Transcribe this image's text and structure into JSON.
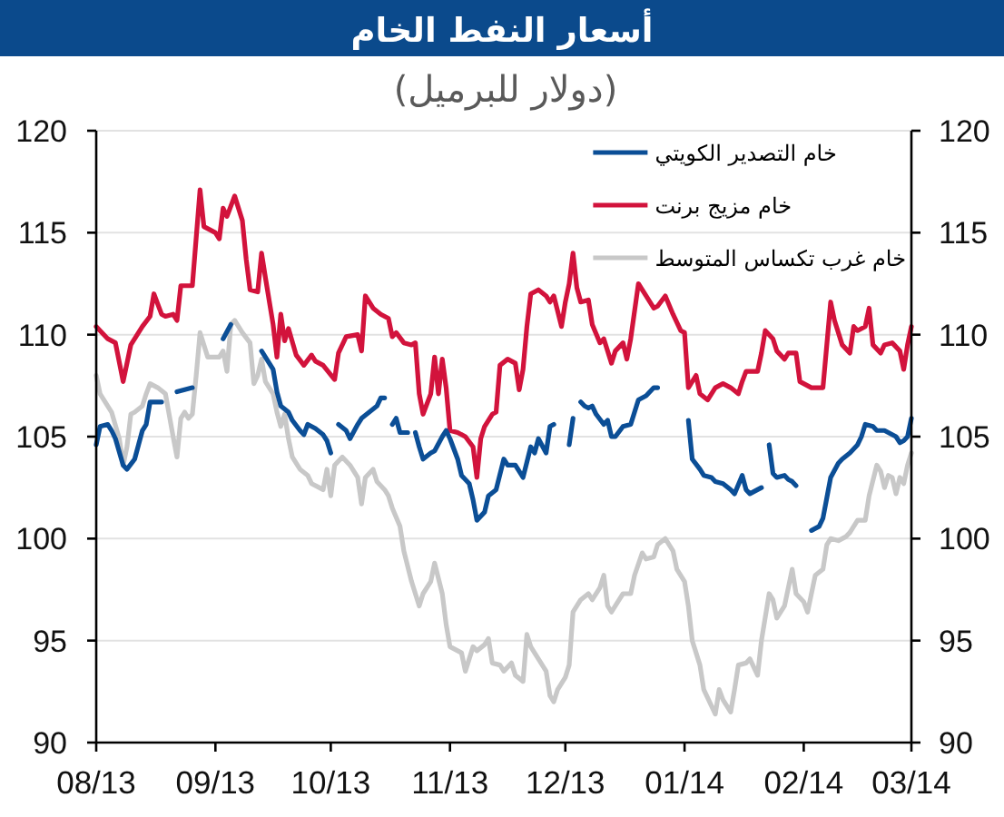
{
  "chart_data": {
    "type": "line",
    "title": "أسعار النفط الخام",
    "subtitle": "(دولار للبرميل)",
    "xlim": [
      "2013-08-01",
      "2014-03-01"
    ],
    "xticks": [
      {
        "value": "2013-08-01",
        "label": "08/13"
      },
      {
        "value": "2013-09-01",
        "label": "09/13"
      },
      {
        "value": "2013-10-01",
        "label": "10/13"
      },
      {
        "value": "2013-11-01",
        "label": "11/13"
      },
      {
        "value": "2013-12-01",
        "label": "12/13"
      },
      {
        "value": "2014-01-01",
        "label": "01/14"
      },
      {
        "value": "2014-02-01",
        "label": "02/14"
      },
      {
        "value": "2014-03-01",
        "label": "03/14"
      }
    ],
    "ylim": [
      90,
      120
    ],
    "yticks": [
      90,
      95,
      100,
      105,
      110,
      115,
      120
    ],
    "y2lim": [
      90,
      120
    ],
    "y2ticks": [
      90,
      95,
      100,
      105,
      110,
      115,
      120
    ],
    "grid": "y",
    "legend": "top right",
    "series": [
      {
        "name": "خام التصدير الكويتي",
        "color": "#0b4e96",
        "x": [
          "2013-08-01",
          "2013-08-02",
          "2013-08-04",
          "2013-08-05",
          "2013-08-06",
          "2013-08-08",
          "2013-08-09",
          "2013-08-11",
          "2013-08-12",
          "2013-08-13",
          "2013-08-14",
          "2013-08-15",
          "2013-08-18",
          "2013-08-19",
          "2013-08-22",
          "2013-08-26",
          "2013-08-28",
          "2013-09-03",
          "2013-09-05",
          "2013-09-08",
          "2013-09-13",
          "2013-09-15",
          "2013-09-16",
          "2013-09-17",
          "2013-09-18",
          "2013-09-20",
          "2013-09-21",
          "2013-09-23",
          "2013-09-24",
          "2013-09-25",
          "2013-09-27",
          "2013-09-29",
          "2013-09-30",
          "2013-10-01",
          "2013-10-02",
          "2013-10-03",
          "2013-10-05",
          "2013-10-06",
          "2013-10-08",
          "2013-10-09",
          "2013-10-11",
          "2013-10-13",
          "2013-10-14",
          "2013-10-15",
          "2013-10-16",
          "2013-10-17",
          "2013-10-18",
          "2013-10-19",
          "2013-10-21",
          "2013-10-22",
          "2013-10-23",
          "2013-10-24",
          "2013-10-25",
          "2013-10-27",
          "2013-10-28",
          "2013-10-30",
          "2013-10-31",
          "2013-11-01",
          "2013-11-03",
          "2013-11-04",
          "2013-11-06",
          "2013-11-07",
          "2013-11-08",
          "2013-11-10",
          "2013-11-11",
          "2013-11-13",
          "2013-11-15",
          "2013-11-16",
          "2013-11-18",
          "2013-11-19",
          "2013-11-20",
          "2013-11-22",
          "2013-11-23",
          "2013-11-24",
          "2013-11-26",
          "2013-11-27",
          "2013-11-28",
          "2013-11-30",
          "2013-12-02",
          "2013-12-03",
          "2013-12-04",
          "2013-12-05",
          "2013-12-06",
          "2013-12-07",
          "2013-12-08",
          "2013-12-09",
          "2013-12-11",
          "2013-12-12",
          "2013-12-13",
          "2013-12-14",
          "2013-12-16",
          "2013-12-18",
          "2013-12-19",
          "2013-12-20",
          "2013-12-22",
          "2013-12-24",
          "2013-12-25",
          "2013-12-28",
          "2014-01-02",
          "2014-01-03",
          "2014-01-05",
          "2014-01-06",
          "2014-01-08",
          "2014-01-09",
          "2014-01-11",
          "2014-01-13",
          "2014-01-14",
          "2014-01-16",
          "2014-01-17",
          "2014-01-18",
          "2014-01-20",
          "2014-01-21",
          "2014-01-22",
          "2014-01-23",
          "2014-01-24",
          "2014-01-25",
          "2014-01-27",
          "2014-01-28",
          "2014-01-29",
          "2014-01-30",
          "2014-01-31",
          "2014-02-03",
          "2014-02-05",
          "2014-02-06",
          "2014-02-07",
          "2014-02-08",
          "2014-02-10",
          "2014-02-11",
          "2014-02-13",
          "2014-02-15",
          "2014-02-16",
          "2014-02-17",
          "2014-02-19",
          "2014-02-20",
          "2014-02-22",
          "2014-02-23",
          "2014-02-25",
          "2014-02-26",
          "2014-02-27",
          "2014-02-28",
          "2014-03-01"
        ],
        "values": [
          104.6,
          105.5,
          105.6,
          105.3,
          104.9,
          103.6,
          103.4,
          103.9,
          104.6,
          105.3,
          105.6,
          106.7,
          106.7,
          null,
          107.2,
          107.4,
          null,
          109.8,
          110.5,
          null,
          109.2,
          108.6,
          108.3,
          107.2,
          106.5,
          106.2,
          105.8,
          105.3,
          105.1,
          105.6,
          105.4,
          105.1,
          104.8,
          104.2,
          null,
          105.6,
          105.3,
          104.9,
          105.6,
          105.9,
          106.2,
          106.5,
          106.9,
          106.9,
          null,
          105.6,
          105.9,
          105.2,
          105.2,
          null,
          105.2,
          104.5,
          103.9,
          104.2,
          104.3,
          105.0,
          105.3,
          104.9,
          103.9,
          103.1,
          102.7,
          101.9,
          100.9,
          101.3,
          102.1,
          102.4,
          103.9,
          103.6,
          103.6,
          103.3,
          103.0,
          104.5,
          104.2,
          104.9,
          104.2,
          105.5,
          105.6,
          null,
          104.6,
          105.9,
          null,
          106.7,
          106.5,
          106.4,
          106.5,
          106.1,
          105.6,
          105.8,
          105.0,
          105.0,
          105.5,
          105.6,
          106.2,
          106.8,
          107.0,
          107.4,
          107.4,
          null,
          105.8,
          103.9,
          103.4,
          103.1,
          103.0,
          102.8,
          102.7,
          102.4,
          102.2,
          103.1,
          102.4,
          102.2,
          102.4,
          102.5,
          null,
          104.6,
          103.2,
          103.0,
          103.1,
          102.9,
          102.8,
          102.6,
          null,
          100.4,
          100.6,
          101.0,
          102.0,
          103.0,
          103.7,
          103.9,
          104.2,
          104.6,
          105.0,
          105.6,
          105.5,
          105.3,
          105.3,
          105.2,
          105.0,
          104.7,
          104.8,
          105.0,
          105.9
        ]
      },
      {
        "name": "خام مزيج برنت",
        "color": "#d2133c",
        "x": [
          "2013-08-01",
          "2013-08-04",
          "2013-08-06",
          "2013-08-08",
          "2013-08-10",
          "2013-08-13",
          "2013-08-15",
          "2013-08-16",
          "2013-08-18",
          "2013-08-19",
          "2013-08-21",
          "2013-08-22",
          "2013-08-23",
          "2013-08-26",
          "2013-08-28",
          "2013-08-29",
          "2013-09-01",
          "2013-09-02",
          "2013-09-03",
          "2013-09-04",
          "2013-09-06",
          "2013-09-08",
          "2013-09-09",
          "2013-09-10",
          "2013-09-12",
          "2013-09-13",
          "2013-09-14",
          "2013-09-16",
          "2013-09-17",
          "2013-09-18",
          "2013-09-19",
          "2013-09-20",
          "2013-09-22",
          "2013-09-24",
          "2013-09-26",
          "2013-09-27",
          "2013-09-29",
          "2013-10-02",
          "2013-10-03",
          "2013-10-05",
          "2013-10-08",
          "2013-10-09",
          "2013-10-10",
          "2013-10-12",
          "2013-10-14",
          "2013-10-16",
          "2013-10-17",
          "2013-10-18",
          "2013-10-20",
          "2013-10-22",
          "2013-10-23",
          "2013-10-24",
          "2013-10-25",
          "2013-10-27",
          "2013-10-28",
          "2013-10-29",
          "2013-10-30",
          "2013-10-31",
          "2013-11-01",
          "2013-11-03",
          "2013-11-05",
          "2013-11-07",
          "2013-11-08",
          "2013-11-09",
          "2013-11-10",
          "2013-11-12",
          "2013-11-13",
          "2013-11-14",
          "2013-11-16",
          "2013-11-18",
          "2013-11-19",
          "2013-11-20",
          "2013-11-21",
          "2013-11-22",
          "2013-11-24",
          "2013-11-26",
          "2013-11-27",
          "2013-11-28",
          "2013-11-30",
          "2013-12-01",
          "2013-12-02",
          "2013-12-03",
          "2013-12-04",
          "2013-12-05",
          "2013-12-07",
          "2013-12-08",
          "2013-12-10",
          "2013-12-11",
          "2013-12-13",
          "2013-12-14",
          "2013-12-16",
          "2013-12-17",
          "2013-12-18",
          "2013-12-20",
          "2013-12-22",
          "2013-12-24",
          "2013-12-25",
          "2013-12-27",
          "2013-12-29",
          "2013-12-31",
          "2014-01-01",
          "2014-01-02",
          "2014-01-04",
          "2014-01-05",
          "2014-01-07",
          "2014-01-09",
          "2014-01-11",
          "2014-01-13",
          "2014-01-15",
          "2014-01-16",
          "2014-01-17",
          "2014-01-20",
          "2014-01-21",
          "2014-01-22",
          "2014-01-24",
          "2014-01-25",
          "2014-01-27",
          "2014-01-28",
          "2014-01-30",
          "2014-01-31",
          "2014-02-03",
          "2014-02-06",
          "2014-02-08",
          "2014-02-09",
          "2014-02-11",
          "2014-02-13",
          "2014-02-14",
          "2014-02-15",
          "2014-02-17",
          "2014-02-18",
          "2014-02-19",
          "2014-02-21",
          "2014-02-22",
          "2014-02-24",
          "2014-02-26",
          "2014-02-27",
          "2014-02-28",
          "2014-03-01"
        ],
        "values": [
          110.4,
          109.8,
          109.6,
          107.7,
          109.5,
          110.4,
          110.9,
          112.0,
          111.0,
          110.9,
          111.0,
          110.7,
          112.4,
          112.4,
          117.1,
          115.3,
          115.0,
          114.7,
          116.2,
          115.8,
          116.8,
          115.6,
          113.7,
          112.2,
          112.1,
          114.0,
          112.8,
          110.5,
          108.9,
          111.0,
          109.7,
          110.3,
          109.0,
          108.5,
          109.0,
          108.7,
          108.5,
          107.8,
          109.1,
          109.9,
          110.0,
          109.2,
          111.9,
          111.3,
          111.0,
          110.8,
          109.9,
          110.1,
          109.6,
          109.5,
          109.6,
          107.1,
          106.1,
          107.1,
          108.9,
          107.1,
          108.8,
          107.4,
          105.3,
          105.2,
          105.0,
          104.5,
          103.0,
          104.9,
          105.5,
          106.1,
          106.2,
          108.5,
          108.8,
          108.6,
          107.3,
          108.3,
          110.4,
          112.0,
          112.2,
          111.9,
          111.6,
          111.9,
          110.4,
          111.6,
          112.5,
          114.0,
          112.3,
          111.6,
          111.7,
          110.5,
          109.6,
          109.8,
          108.6,
          109.2,
          109.6,
          108.8,
          109.8,
          112.5,
          111.9,
          111.3,
          111.4,
          111.9,
          111.0,
          110.2,
          110.1,
          107.4,
          108.0,
          107.1,
          106.8,
          107.4,
          107.6,
          107.4,
          107.1,
          107.7,
          108.2,
          108.2,
          109.1,
          110.2,
          109.8,
          109.2,
          108.8,
          109.1,
          109.1,
          107.7,
          107.4,
          107.4,
          111.6,
          110.7,
          109.5,
          109.1,
          110.4,
          110.2,
          110.4,
          111.3,
          109.5,
          109.1,
          109.5,
          109.6,
          109.2,
          108.3,
          109.5,
          110.4
        ]
      },
      {
        "name": "خام غرب تكساس المتوسط",
        "color": "#c8c8c8",
        "x": [
          "2013-08-01",
          "2013-08-02",
          "2013-08-04",
          "2013-08-05",
          "2013-08-07",
          "2013-08-08",
          "2013-08-09",
          "2013-08-10",
          "2013-08-11",
          "2013-08-13",
          "2013-08-14",
          "2013-08-15",
          "2013-08-17",
          "2013-08-19",
          "2013-08-21",
          "2013-08-22",
          "2013-08-23",
          "2013-08-24",
          "2013-08-25",
          "2013-08-26",
          "2013-08-27",
          "2013-08-28",
          "2013-08-30",
          "2013-08-31",
          "2013-09-02",
          "2013-09-03",
          "2013-09-04",
          "2013-09-05",
          "2013-09-06",
          "2013-09-08",
          "2013-09-10",
          "2013-09-11",
          "2013-09-12",
          "2013-09-13",
          "2013-09-14",
          "2013-09-16",
          "2013-09-17",
          "2013-09-18",
          "2013-09-19",
          "2013-09-20",
          "2013-09-21",
          "2013-09-23",
          "2013-09-25",
          "2013-09-26",
          "2013-09-28",
          "2013-09-29",
          "2013-09-30",
          "2013-10-01",
          "2013-10-02",
          "2013-10-04",
          "2013-10-06",
          "2013-10-07",
          "2013-10-08",
          "2013-10-09",
          "2013-10-10",
          "2013-10-12",
          "2013-10-13",
          "2013-10-15",
          "2013-10-16",
          "2013-10-17",
          "2013-10-19",
          "2013-10-20",
          "2013-10-22",
          "2013-10-24",
          "2013-10-25",
          "2013-10-27",
          "2013-10-28",
          "2013-10-30",
          "2013-10-31",
          "2013-11-01",
          "2013-11-03",
          "2013-11-04",
          "2013-11-05",
          "2013-11-07",
          "2013-11-08",
          "2013-11-10",
          "2013-11-11",
          "2013-11-12",
          "2013-11-14",
          "2013-11-15",
          "2013-11-17",
          "2013-11-18",
          "2013-11-20",
          "2013-11-21",
          "2013-11-22",
          "2013-11-24",
          "2013-11-26",
          "2013-11-27",
          "2013-11-28",
          "2013-11-29",
          "2013-12-01",
          "2013-12-02",
          "2013-12-03",
          "2013-12-05",
          "2013-12-07",
          "2013-12-08",
          "2013-12-10",
          "2013-12-11",
          "2013-12-12",
          "2013-12-13",
          "2013-12-15",
          "2013-12-16",
          "2013-12-18",
          "2013-12-19",
          "2013-12-21",
          "2013-12-22",
          "2013-12-24",
          "2013-12-25",
          "2013-12-27",
          "2013-12-29",
          "2013-12-30",
          "2014-01-01",
          "2014-01-02",
          "2014-01-03",
          "2014-01-04",
          "2014-01-05",
          "2014-01-06",
          "2014-01-08",
          "2014-01-09",
          "2014-01-10",
          "2014-01-11",
          "2014-01-13",
          "2014-01-14",
          "2014-01-15",
          "2014-01-17",
          "2014-01-18",
          "2014-01-20",
          "2014-01-21",
          "2014-01-23",
          "2014-01-24",
          "2014-01-25",
          "2014-01-27",
          "2014-01-28",
          "2014-01-29",
          "2014-01-30",
          "2014-02-01",
          "2014-02-02",
          "2014-02-03",
          "2014-02-04",
          "2014-02-06",
          "2014-02-07",
          "2014-02-08",
          "2014-02-10",
          "2014-02-12",
          "2014-02-13",
          "2014-02-15",
          "2014-02-17",
          "2014-02-18",
          "2014-02-20",
          "2014-02-21",
          "2014-02-22",
          "2014-02-23",
          "2014-02-24",
          "2014-02-25",
          "2014-02-26",
          "2014-02-27",
          "2014-02-28",
          "2014-03-01"
        ],
        "values": [
          108.0,
          107.1,
          106.5,
          106.2,
          104.9,
          103.6,
          104.5,
          106.1,
          106.2,
          106.5,
          107.1,
          107.6,
          107.4,
          107.1,
          105.0,
          104.0,
          105.9,
          106.2,
          105.9,
          106.1,
          108.0,
          110.1,
          108.9,
          108.9,
          108.9,
          109.2,
          108.2,
          110.5,
          110.7,
          110.1,
          109.6,
          107.6,
          108.0,
          108.8,
          107.7,
          107.1,
          106.2,
          105.5,
          106.1,
          104.9,
          104.0,
          103.4,
          103.1,
          102.7,
          102.5,
          102.4,
          103.4,
          102.1,
          103.6,
          104.0,
          103.6,
          103.3,
          103.0,
          101.7,
          103.0,
          103.4,
          102.8,
          102.4,
          102.1,
          101.5,
          100.6,
          99.4,
          97.9,
          96.7,
          97.3,
          97.9,
          98.8,
          97.3,
          95.8,
          94.7,
          94.5,
          94.4,
          93.5,
          94.7,
          94.5,
          94.8,
          95.1,
          93.9,
          93.8,
          93.5,
          93.9,
          93.3,
          93.0,
          95.3,
          94.7,
          94.1,
          93.5,
          92.3,
          92.0,
          92.6,
          93.2,
          93.8,
          96.4,
          97.0,
          97.3,
          97.0,
          97.6,
          98.2,
          96.7,
          96.4,
          97.0,
          97.3,
          97.3,
          98.2,
          99.3,
          99.0,
          99.1,
          99.7,
          100.0,
          99.4,
          98.5,
          97.9,
          96.7,
          95.0,
          94.4,
          93.8,
          92.6,
          91.8,
          91.4,
          92.6,
          92.1,
          91.5,
          92.6,
          93.8,
          93.9,
          94.1,
          93.3,
          95.0,
          97.3,
          97.0,
          96.1,
          96.7,
          97.6,
          98.5,
          97.3,
          96.9,
          96.4,
          97.3,
          98.2,
          98.5,
          99.7,
          100.0,
          99.9,
          100.1,
          100.3,
          100.9,
          100.9,
          102.1,
          103.6,
          103.3,
          102.5,
          103.1,
          103.0,
          102.2,
          103.0,
          102.7,
          103.6,
          104.2
        ]
      }
    ]
  }
}
